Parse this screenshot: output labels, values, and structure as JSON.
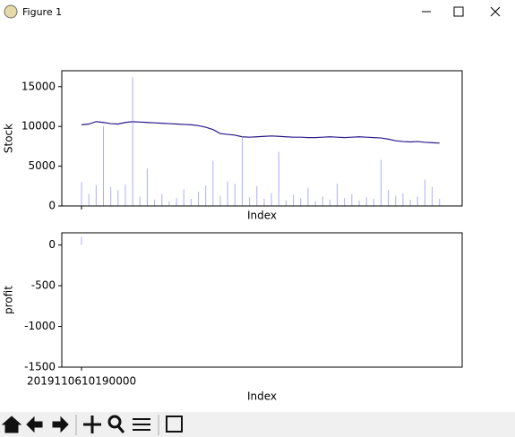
{
  "window": {
    "title": "Figure 1"
  },
  "chart_data": [
    {
      "type": "line",
      "ylabel": "Stock",
      "xlabel": "Index",
      "x": [
        0,
        2,
        4,
        6,
        8,
        10,
        12,
        14,
        16,
        18,
        20,
        22,
        24,
        26,
        28,
        30,
        32,
        34,
        36,
        38,
        40,
        42,
        44,
        46,
        48,
        50,
        52,
        54,
        56,
        58,
        60,
        62,
        64,
        66,
        68,
        70,
        72,
        74,
        76,
        78,
        80,
        82,
        84,
        86,
        88,
        90,
        92,
        94,
        96,
        98
      ],
      "series": [
        {
          "type": "line",
          "color": "#2a1a8a",
          "values": [
            10200,
            10300,
            10600,
            10500,
            10350,
            10300,
            10500,
            10600,
            10550,
            10500,
            10450,
            10400,
            10350,
            10300,
            10250,
            10200,
            10100,
            9900,
            9600,
            9100,
            9000,
            8900,
            8700,
            8650,
            8700,
            8750,
            8800,
            8750,
            8700,
            8650,
            8650,
            8600,
            8600,
            8650,
            8700,
            8650,
            8600,
            8650,
            8700,
            8650,
            8600,
            8550,
            8400,
            8200,
            8100,
            8050,
            8100,
            8000,
            7950,
            7900
          ]
        },
        {
          "type": "bar",
          "color": "#8a8aff",
          "values": [
            3000,
            1500,
            2600,
            10000,
            2400,
            2000,
            2700,
            16200,
            1200,
            4700,
            800,
            1500,
            600,
            1000,
            2100,
            900,
            1800,
            2600,
            5700,
            1300,
            3100,
            2800,
            8800,
            1100,
            2500,
            900,
            1600,
            6800,
            700,
            1400,
            1000,
            2300,
            600,
            1200,
            800,
            2800,
            1000,
            1500,
            700,
            1100,
            900,
            5800,
            2000,
            1300,
            1600,
            800,
            1200,
            3300,
            2400,
            900
          ]
        }
      ],
      "xlim": [
        -5.4,
        104.2
      ],
      "ylim": [
        0,
        17000
      ],
      "yticks": [
        0,
        5000,
        10000,
        15000
      ]
    },
    {
      "type": "bar",
      "ylabel": "profit",
      "xlabel": "Index",
      "x": [
        0
      ],
      "values": [
        100
      ],
      "color": "#8a8aff",
      "xlim": [
        -5.4,
        104.2
      ],
      "ylim": [
        -1500,
        150
      ],
      "yticks": [
        -1500,
        -1000,
        -500,
        0
      ],
      "xticks": [
        {
          "value": 0,
          "label": "2019110610190000"
        }
      ]
    }
  ]
}
